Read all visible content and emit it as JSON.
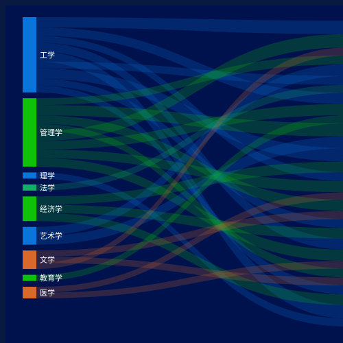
{
  "chart_data": {
    "type": "sankey",
    "colors": {
      "background": "#00124d",
      "blue": "#0b74d9",
      "green": "#0ec20a",
      "teal": "#11b06a",
      "orange": "#d9692a"
    },
    "nodes": [
      {
        "label": "工学",
        "value": 22.0,
        "color": "#0b74d9"
      },
      {
        "label": "管理学",
        "value": 20.0,
        "color": "#0ec20a"
      },
      {
        "label": "理学",
        "value": 1.8,
        "color": "#0b74d9"
      },
      {
        "label": "法学",
        "value": 1.8,
        "color": "#11b06a"
      },
      {
        "label": "经济学",
        "value": 7.2,
        "color": "#0ec20a"
      },
      {
        "label": "艺术学",
        "value": 5.2,
        "color": "#0b74d9"
      },
      {
        "label": "文学",
        "value": 5.4,
        "color": "#d9692a"
      },
      {
        "label": "教育学",
        "value": 1.8,
        "color": "#0ec20a"
      },
      {
        "label": "医学",
        "value": 3.4,
        "color": "#d9692a"
      }
    ],
    "flows": [
      {
        "from": 0,
        "values": [
          3.0,
          2.5,
          2.0,
          2.5,
          3.0,
          2.0,
          3.0,
          2.0,
          2.0
        ]
      },
      {
        "from": 1,
        "values": [
          2.0,
          3.0,
          2.5,
          2.0,
          3.0,
          2.5,
          2.5,
          2.5
        ]
      },
      {
        "from": 2,
        "values": [
          1.8
        ]
      },
      {
        "from": 3,
        "values": [
          1.8
        ]
      },
      {
        "from": 4,
        "values": [
          2.4,
          2.4,
          2.4
        ]
      },
      {
        "from": 5,
        "values": [
          2.6,
          2.6
        ]
      },
      {
        "from": 6,
        "values": [
          1.8,
          1.8,
          1.8
        ]
      },
      {
        "from": 7,
        "values": [
          1.8
        ]
      },
      {
        "from": 8,
        "values": [
          1.7,
          1.7
        ]
      }
    ]
  }
}
